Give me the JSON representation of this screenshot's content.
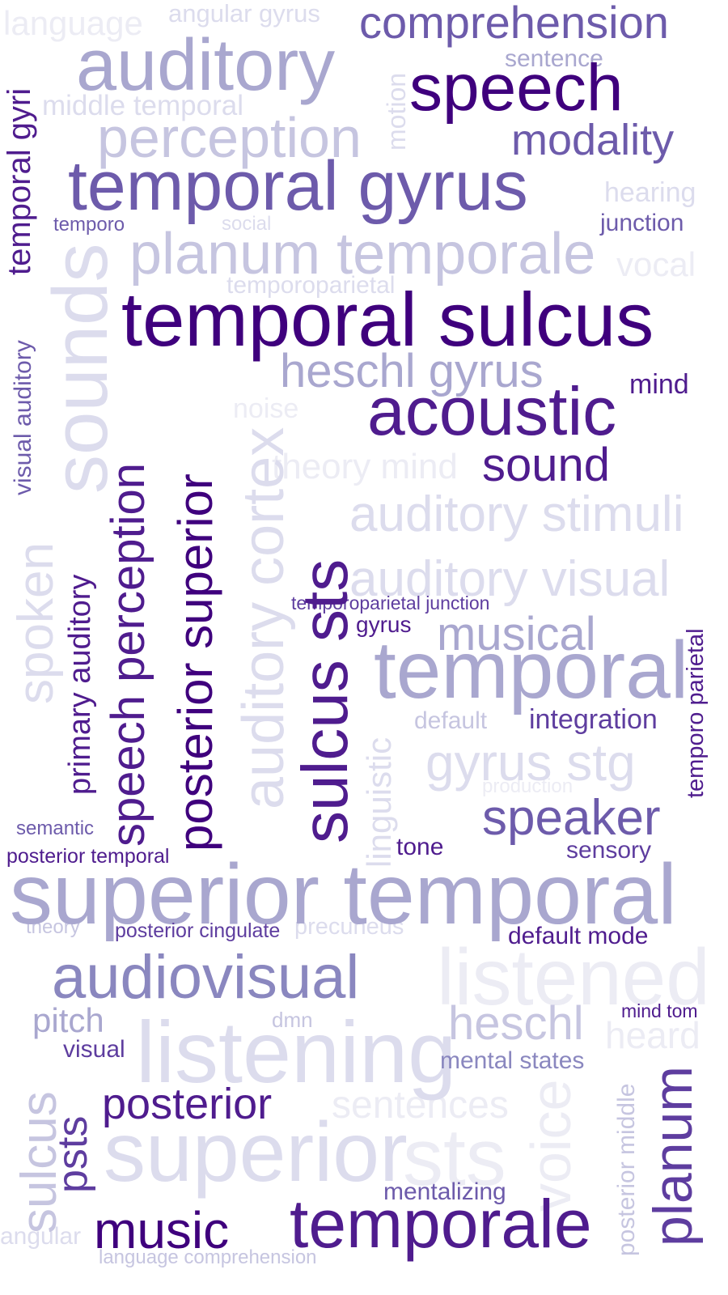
{
  "words": {
    "language": "language",
    "angular_gyrus": "angular gyrus",
    "comprehension": "comprehension",
    "temporal_gyri": "temporal gyri",
    "auditory": "auditory",
    "sentence": "sentence",
    "speech": "speech",
    "middle_temporal": "middle temporal",
    "motion": "motion",
    "perception": "perception",
    "modality": "modality",
    "temporal_gyrus": "temporal gyrus",
    "hearing": "hearing",
    "temporo": "temporo",
    "social": "social",
    "junction": "junction",
    "planum_temporale": "planum temporale",
    "vocal": "vocal",
    "sounds": "sounds",
    "temporoparietal": "temporoparietal",
    "temporal_sulcus": "temporal sulcus",
    "visual_auditory": "visual auditory",
    "heschl_gyrus": "heschl gyrus",
    "mind": "mind",
    "noise": "noise",
    "acoustic": "acoustic",
    "speech_perception": "speech perception",
    "posterior_superior": "posterior superior",
    "auditory_cortex": "auditory cortex",
    "theory_mind": "theory mind",
    "sound": "sound",
    "sulcus_sts": "sulcus sts",
    "auditory_stimuli": "auditory stimuli",
    "spoken": "spoken",
    "primary_auditory": "primary auditory",
    "auditory_visual": "auditory visual",
    "temporoparietal_junction": "temporoparietal junction",
    "gyrus": "gyrus",
    "musical": "musical",
    "temporo_parietal": "temporo parietal",
    "temporal": "temporal",
    "default": "default",
    "integration": "integration",
    "linguistic": "linguistic",
    "gyrus_stg": "gyrus stg",
    "production": "production",
    "speaker": "speaker",
    "semantic": "semantic",
    "tone": "tone",
    "sensory": "sensory",
    "posterior_temporal": "posterior temporal",
    "superior_temporal": "superior temporal",
    "theory": "theory",
    "posterior_cingulate": "posterior cingulate",
    "precuneus": "precuneus",
    "default_mode": "default mode",
    "audiovisual": "audiovisual",
    "listened": "listened",
    "pitch": "pitch",
    "dmn": "dmn",
    "mind_tom": "mind tom",
    "heschl": "heschl",
    "visual": "visual",
    "listening": "listening",
    "heard": "heard",
    "mental_states": "mental states",
    "posterior_middle": "posterior middle",
    "planum": "planum",
    "sulcus": "sulcus",
    "psts": "psts",
    "posterior": "posterior",
    "sentences": "sentences",
    "voice": "voice",
    "superior": "superior",
    "sts": "sts",
    "mentalizing": "mentalizing",
    "angular": "angular",
    "music": "music",
    "temporale": "temporale",
    "language_comprehension": "language comprehension"
  },
  "palette": [
    "#3f007d",
    "#4f1c8e",
    "#5e3d9f",
    "#6d5bab",
    "#8a87bf",
    "#a9a7cf",
    "#c6c5e0",
    "#dcdced",
    "#ececf4"
  ]
}
